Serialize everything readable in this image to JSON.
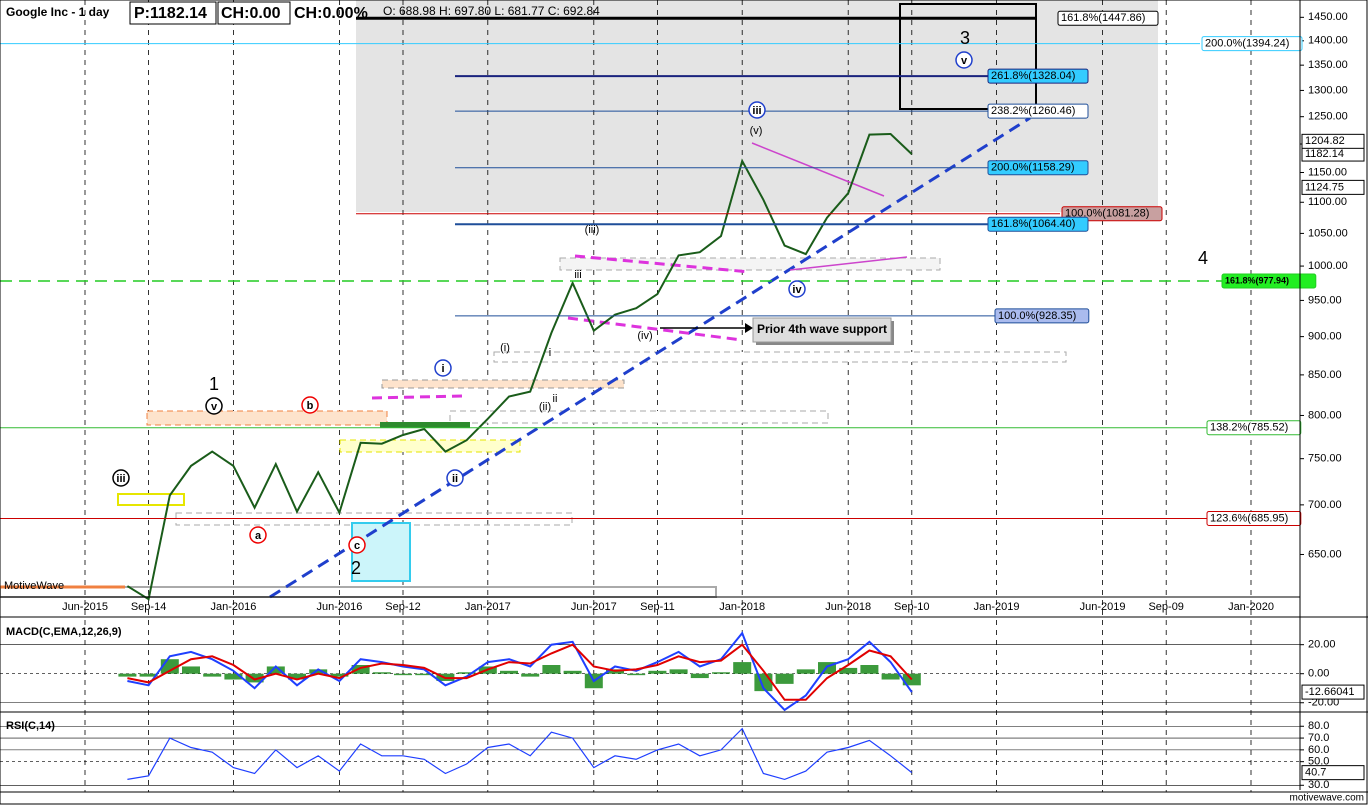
{
  "chart_data": [
    {
      "type": "line",
      "title": "Google Inc - 1 day",
      "header_fields": [
        "P:1182.14",
        "CH:0.00",
        "CH:0.00%",
        "O: 688.98  H: 697.80  L: 681.77  C: 692.84"
      ],
      "watermark": "MotiveWave",
      "callout": "Prior 4th wave support",
      "categories": [
        null,
        null,
        null,
        null,
        "Jun-2015",
        null,
        null,
        "Sep-14",
        null,
        null,
        null,
        "Jan-2016",
        null,
        null,
        null,
        null,
        "Jun-2016",
        null,
        null,
        "Sep-12",
        null,
        null,
        null,
        "Jan-2017",
        null,
        null,
        null,
        null,
        "Jun-2017",
        null,
        null,
        "Sep-11",
        null,
        null,
        null,
        "Jan-2018",
        null,
        null,
        null,
        null,
        "Jun-2018",
        null,
        null,
        "Sep-10",
        null,
        null,
        null,
        "Jan-2019",
        null,
        null,
        null,
        null,
        "Jun-2019",
        null,
        null,
        "Sep-09",
        null,
        null,
        null,
        "Jan-2020",
        null,
        null
      ],
      "values": [
        null,
        null,
        null,
        null,
        null,
        null,
        620,
        608,
        710,
        742,
        758,
        742,
        697,
        744,
        693,
        735,
        692,
        768,
        767,
        777,
        784,
        758,
        771,
        796,
        823,
        829,
        905,
        975,
        908,
        930,
        939,
        959,
        1016,
        1021,
        1046,
        1170,
        1104,
        1031,
        1018,
        1075,
        1115,
        1217,
        1218,
        1182.14,
        null,
        null,
        null,
        null,
        null,
        null,
        null,
        null,
        null,
        null,
        null,
        null,
        null,
        null,
        null,
        null,
        null,
        null
      ],
      "color": "#1a5c1a",
      "log_scale": true,
      "grid": true,
      "ylim": [
        610,
        1488
      ],
      "yticks": [
        {
          "value": 650,
          "label": "650.00"
        },
        {
          "value": 700,
          "label": "700.00"
        },
        {
          "value": 750,
          "label": "750.00"
        },
        {
          "value": 800,
          "label": "800.00"
        },
        {
          "value": 850,
          "label": "850.00"
        },
        {
          "value": 900,
          "label": "900.00"
        },
        {
          "value": 950,
          "label": "950.00"
        },
        {
          "value": 1000,
          "label": "1000.00"
        },
        {
          "value": 1050,
          "label": "1050.00"
        },
        {
          "value": 1100,
          "label": "1100.00"
        },
        {
          "value": 1150,
          "label": "1150.00"
        },
        {
          "value": 1200,
          "label": "1200.00"
        },
        {
          "value": 1250,
          "label": "1250.00"
        },
        {
          "value": 1300,
          "label": "1300.00"
        },
        {
          "value": 1350,
          "label": "1350.00"
        },
        {
          "value": 1400,
          "label": "1400.00"
        },
        {
          "value": 1450,
          "label": "1450.00"
        }
      ],
      "levels": [
        {
          "label": "161.8%(1447.86)",
          "value": 1447.86,
          "color": "#000000"
        },
        {
          "label": "200.0%(1394.24)",
          "value": 1394.24,
          "color": "#33ccff"
        },
        {
          "label": "261.8%(1328.04)",
          "value": 1328.04,
          "color": "#1a237e"
        },
        {
          "label": "238.2%(1260.46)",
          "value": 1260.46,
          "color": "#1f4e99"
        },
        {
          "label": "200.0%(1158.29)",
          "value": 1158.29,
          "color": "#1f4e99"
        },
        {
          "label": "100.0%(1081.28)",
          "value": 1081.28,
          "color": "#cc0000"
        },
        {
          "label": "161.8%(1064.40)",
          "value": 1064.4,
          "color": "#1f4e99"
        },
        {
          "label": "161.8%(977.94)",
          "value": 977.94,
          "color": "#22cc22"
        },
        {
          "label": "100.0%(928.35)",
          "value": 928.35,
          "color": "#1f4e99"
        },
        {
          "label": "138.2%(785.52)",
          "value": 785.52,
          "color": "#33bb33"
        },
        {
          "label": "123.6%(685.95)",
          "value": 685.95,
          "color": "#cc0000"
        }
      ],
      "right_labels": [
        1204.82,
        1124.75
      ],
      "annotations": [
        "1",
        "v",
        "iii",
        "a",
        "b",
        "c",
        "2",
        "i",
        "ii",
        "(i)",
        "i",
        "ii",
        "(ii)",
        "iii",
        "(iii)",
        "(iv)",
        "(v)",
        "iii",
        "iv",
        "v",
        "3",
        "4"
      ]
    },
    {
      "type": "line",
      "title": "MACD(C,EMA,12,26,9)",
      "series": [
        {
          "color": "#1f3fff",
          "values": [
            null,
            null,
            null,
            null,
            null,
            null,
            -5,
            -8,
            12,
            15,
            10,
            2,
            -10,
            5,
            -8,
            3,
            -5,
            10,
            8,
            5,
            3,
            -8,
            -2,
            8,
            10,
            5,
            20,
            22,
            -5,
            5,
            2,
            8,
            15,
            5,
            10,
            28,
            -10,
            -25,
            -15,
            5,
            10,
            22,
            8,
            -12.66041,
            null,
            null,
            null,
            null,
            null,
            null,
            null,
            null,
            null,
            null,
            null,
            null,
            null,
            null,
            null,
            null,
            null,
            null
          ]
        },
        {
          "color": "#e00000",
          "values": [
            null,
            null,
            null,
            null,
            null,
            null,
            -3,
            -6,
            2,
            10,
            12,
            6,
            -4,
            0,
            -4,
            0,
            -3,
            4,
            7,
            6,
            4,
            -3,
            -3,
            3,
            8,
            7,
            14,
            20,
            5,
            2,
            3,
            6,
            12,
            8,
            9,
            20,
            2,
            -18,
            -18,
            -3,
            6,
            16,
            12,
            -4,
            null,
            null,
            null,
            null,
            null,
            null,
            null,
            null,
            null,
            null,
            null,
            null,
            null,
            null,
            null,
            null,
            null,
            null
          ]
        }
      ],
      "histogram": {
        "color": "#3c9a3c",
        "values": [
          null,
          null,
          null,
          null,
          null,
          null,
          -2,
          -2,
          10,
          5,
          -2,
          -4,
          -6,
          5,
          -4,
          3,
          -2,
          6,
          1,
          -1,
          -1,
          -5,
          1,
          5,
          2,
          -2,
          6,
          2,
          -10,
          3,
          -1,
          2,
          3,
          -3,
          1,
          8,
          -12,
          -7,
          3,
          8,
          4,
          6,
          -4,
          -8,
          null,
          null,
          null,
          null,
          null,
          null,
          null,
          null,
          null,
          null,
          null,
          null,
          null,
          null,
          null,
          null,
          null,
          null
        ]
      },
      "ylim": [
        -25,
        37
      ],
      "yticks": [
        {
          "value": 20,
          "label": "20.00"
        },
        {
          "value": 0,
          "label": "0.00"
        },
        {
          "value": -20,
          "label": "-20.00"
        }
      ]
    },
    {
      "type": "line",
      "title": "RSI(C,14)",
      "color": "#1f3fff",
      "values": [
        null,
        null,
        null,
        null,
        null,
        null,
        35,
        38,
        70,
        62,
        58,
        45,
        40,
        60,
        45,
        55,
        42,
        65,
        55,
        55,
        52,
        40,
        48,
        62,
        65,
        55,
        75,
        70,
        45,
        55,
        52,
        60,
        65,
        55,
        60,
        78,
        40,
        35,
        42,
        58,
        62,
        68,
        55,
        40.7,
        null,
        null,
        null,
        null,
        null,
        null,
        null,
        null,
        null,
        null,
        null,
        null,
        null,
        null,
        null,
        null,
        null,
        null
      ],
      "ylim": [
        26,
        87
      ],
      "yticks": [
        {
          "value": 80,
          "label": "80.0"
        },
        {
          "value": 70,
          "label": "70.0"
        },
        {
          "value": 60,
          "label": "60.0"
        },
        {
          "value": 50,
          "label": "50.0"
        },
        {
          "value": 30,
          "label": "30.0"
        }
      ]
    }
  ],
  "footer": "motivewave.com"
}
